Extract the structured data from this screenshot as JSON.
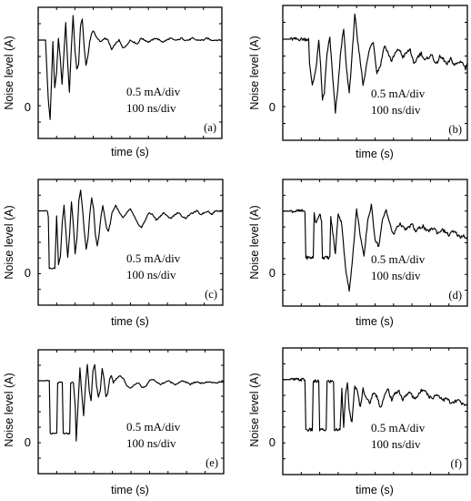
{
  "chart_data": [
    {
      "type": "line",
      "panel_label": "(a)",
      "ylabel": "Noise level (A)",
      "xlabel": "time (s)",
      "ytick_label": "0",
      "annotation_lines": [
        "0.5 mA/div",
        "100 ns/div"
      ],
      "units": {
        "y": "mA",
        "x": "ns"
      },
      "xlim": [
        0,
        1000
      ],
      "ylim": [
        -1.6,
        1.8
      ],
      "baseline": 0.95,
      "pulses": [
        {
          "t": 52,
          "depth": 0.0,
          "width": 6
        },
        {
          "t": 70,
          "depth": 0.0,
          "width": 8
        },
        {
          "t": 100,
          "depth": 0.0,
          "width": 10
        }
      ],
      "x": [
        0,
        40,
        45,
        55,
        65,
        72,
        80,
        90,
        100,
        110,
        120,
        130,
        140,
        150,
        160,
        170,
        180,
        190,
        200,
        210,
        220,
        230,
        240,
        250,
        260,
        270,
        280,
        290,
        300,
        320,
        340,
        360,
        380,
        400,
        420,
        440,
        460,
        480,
        500,
        520,
        540,
        560,
        580,
        600,
        620,
        640,
        660,
        680,
        700,
        720,
        740,
        760,
        780,
        800,
        820,
        840,
        860,
        880,
        900,
        920,
        940,
        960,
        980,
        1000
      ],
      "y": [
        0.95,
        0.95,
        0.4,
        -0.6,
        -1.1,
        -0.2,
        0.9,
        -0.3,
        0.1,
        1.0,
        0.5,
        -0.2,
        0.6,
        1.4,
        0.4,
        -0.4,
        0.7,
        1.6,
        0.7,
        0.2,
        0.3,
        1.3,
        1.5,
        0.8,
        0.3,
        0.5,
        0.9,
        1.1,
        1.2,
        1.0,
        0.9,
        1.0,
        0.95,
        0.7,
        0.85,
        0.95,
        0.75,
        0.8,
        0.95,
        0.9,
        0.85,
        1.0,
        0.95,
        0.9,
        0.95,
        1.0,
        0.95,
        0.9,
        0.95,
        1.0,
        0.95,
        0.95,
        1.0,
        0.95,
        0.95,
        1.0,
        0.95,
        0.95,
        0.95,
        1.0,
        0.95,
        0.95,
        0.95,
        0.95
      ]
    },
    {
      "type": "line",
      "panel_label": "(b)",
      "ylabel": "Noise level (A)",
      "xlabel": "time (s)",
      "ytick_label": "0",
      "annotation_lines": [
        "0.5 mA/div",
        "100 ns/div"
      ],
      "units": {
        "y": "mA",
        "x": "ns"
      },
      "xlim": [
        0,
        1000
      ],
      "ylim": [
        -1.6,
        1.8
      ],
      "baseline": 0.95,
      "x": [
        0,
        140,
        145,
        160,
        180,
        195,
        205,
        215,
        225,
        240,
        255,
        270,
        285,
        300,
        315,
        330,
        345,
        360,
        375,
        390,
        405,
        420,
        435,
        450,
        470,
        490,
        510,
        530,
        550,
        570,
        590,
        610,
        630,
        650,
        670,
        690,
        710,
        730,
        750,
        770,
        790,
        810,
        830,
        850,
        870,
        890,
        910,
        930,
        950,
        970,
        990,
        1000
      ],
      "y": [
        0.95,
        0.95,
        0.3,
        -0.2,
        0.2,
        0.9,
        0.3,
        -0.6,
        -0.4,
        0.6,
        1.0,
        0.0,
        -0.9,
        -0.2,
        0.7,
        1.2,
        0.2,
        -0.4,
        0.5,
        1.6,
        0.9,
        0.4,
        -0.2,
        0.2,
        0.7,
        0.9,
        0.1,
        0.3,
        0.8,
        0.6,
        0.4,
        0.6,
        0.7,
        0.5,
        0.6,
        0.7,
        0.3,
        0.5,
        0.6,
        0.4,
        0.5,
        0.55,
        0.3,
        0.5,
        0.45,
        0.3,
        0.45,
        0.3,
        0.35,
        0.4,
        0.2,
        0.35
      ],
      "noisy": true
    },
    {
      "type": "line",
      "panel_label": "(c)",
      "ylabel": "Noise level (A)",
      "xlabel": "time (s)",
      "ytick_label": "0",
      "annotation_lines": [
        "0.5 mA/div",
        "100 ns/div"
      ],
      "units": {
        "y": "mA",
        "x": "ns"
      },
      "xlim": [
        0,
        1000
      ],
      "ylim": [
        -1.6,
        1.8
      ],
      "baseline": 0.95,
      "x": [
        0,
        50,
        55,
        60,
        90,
        100,
        110,
        120,
        130,
        140,
        150,
        160,
        170,
        180,
        190,
        200,
        210,
        220,
        230,
        240,
        250,
        260,
        270,
        280,
        290,
        300,
        310,
        320,
        330,
        340,
        350,
        360,
        370,
        380,
        390,
        400,
        420,
        440,
        460,
        480,
        500,
        520,
        540,
        560,
        580,
        600,
        620,
        640,
        660,
        680,
        700,
        720,
        740,
        760,
        780,
        800,
        820,
        840,
        860,
        880,
        900,
        920,
        940,
        960,
        980,
        1000
      ],
      "y": [
        0.95,
        0.95,
        0.8,
        -0.6,
        -0.6,
        0.8,
        -0.5,
        -0.3,
        0.6,
        1.1,
        0.4,
        -0.3,
        0.3,
        1.2,
        0.6,
        -0.2,
        0.2,
        1.2,
        1.5,
        1.0,
        0.4,
        -0.1,
        0.2,
        0.9,
        1.3,
        1.0,
        0.3,
        0.0,
        0.3,
        0.8,
        1.1,
        0.8,
        0.5,
        0.4,
        0.6,
        0.9,
        1.1,
        0.9,
        0.75,
        0.9,
        1.0,
        0.8,
        0.6,
        0.5,
        0.7,
        0.9,
        0.85,
        0.7,
        0.8,
        0.9,
        0.8,
        0.75,
        0.85,
        0.9,
        0.8,
        0.75,
        0.85,
        0.9,
        0.95,
        0.85,
        0.9,
        0.95,
        0.85,
        0.95,
        0.95,
        0.95
      ],
      "step_pulses": [
        {
          "start": 58,
          "end": 88,
          "level": -0.6
        }
      ]
    },
    {
      "type": "line",
      "panel_label": "(d)",
      "ylabel": "Noise level (A)",
      "xlabel": "time (s)",
      "ytick_label": "0",
      "annotation_lines": [
        "0.5 mA/div",
        "100 ns/div"
      ],
      "units": {
        "y": "mA",
        "x": "ns"
      },
      "xlim": [
        0,
        1000
      ],
      "ylim": [
        -1.6,
        1.8
      ],
      "baseline": 0.95,
      "x": [
        0,
        120,
        125,
        165,
        170,
        180,
        200,
        210,
        215,
        255,
        260,
        270,
        285,
        300,
        320,
        340,
        360,
        380,
        400,
        420,
        440,
        460,
        480,
        500,
        520,
        540,
        560,
        580,
        600,
        620,
        640,
        660,
        680,
        700,
        720,
        740,
        760,
        780,
        800,
        820,
        840,
        860,
        880,
        900,
        920,
        940,
        960,
        980,
        1000
      ],
      "y": [
        0.95,
        0.95,
        -0.3,
        -0.3,
        0.9,
        0.6,
        0.9,
        0.7,
        -0.3,
        -0.3,
        0.8,
        0.4,
        -0.2,
        0.9,
        0.6,
        -0.6,
        -1.2,
        -0.2,
        1.0,
        0.3,
        -0.3,
        0.7,
        1.1,
        0.2,
        0.0,
        0.7,
        1.0,
        0.6,
        0.3,
        0.55,
        0.6,
        0.45,
        0.5,
        0.6,
        0.4,
        0.5,
        0.55,
        0.4,
        0.45,
        0.5,
        0.35,
        0.45,
        0.4,
        0.3,
        0.4,
        0.35,
        0.25,
        0.3,
        0.2
      ],
      "noisy": true
    },
    {
      "type": "line",
      "panel_label": "(e)",
      "ylabel": "Noise level (A)",
      "xlabel": "time (s)",
      "ytick_label": "0",
      "annotation_lines": [
        "0.5 mA/div",
        "100 ns/div"
      ],
      "units": {
        "y": "mA",
        "x": "ns"
      },
      "xlim": [
        0,
        1000
      ],
      "ylim": [
        -1.6,
        1.8
      ],
      "baseline": 0.95,
      "x": [
        0,
        60,
        65,
        100,
        105,
        130,
        135,
        170,
        175,
        190,
        200,
        205,
        215,
        225,
        235,
        245,
        255,
        265,
        275,
        285,
        295,
        305,
        315,
        325,
        335,
        345,
        355,
        365,
        375,
        385,
        395,
        405,
        420,
        440,
        460,
        480,
        500,
        520,
        540,
        560,
        580,
        600,
        620,
        640,
        660,
        680,
        700,
        720,
        740,
        760,
        780,
        800,
        820,
        840,
        860,
        880,
        900,
        920,
        940,
        960,
        980,
        1000
      ],
      "y": [
        0.95,
        0.95,
        -0.5,
        -0.5,
        0.9,
        0.9,
        -0.5,
        -0.5,
        0.9,
        0.9,
        0.2,
        -0.7,
        0.3,
        1.3,
        0.6,
        0.0,
        0.8,
        1.4,
        0.7,
        0.4,
        1.2,
        1.4,
        0.8,
        0.5,
        0.7,
        1.3,
        1.0,
        0.5,
        0.6,
        1.0,
        1.1,
        0.9,
        1.0,
        1.1,
        1.0,
        0.8,
        0.75,
        0.85,
        0.9,
        0.75,
        0.8,
        0.95,
        1.0,
        0.9,
        0.85,
        0.9,
        0.95,
        0.9,
        0.85,
        0.9,
        0.95,
        0.9,
        0.85,
        0.9,
        0.92,
        0.88,
        0.9,
        0.92,
        0.9,
        0.88,
        0.92,
        0.9
      ]
    },
    {
      "type": "line",
      "panel_label": "(f)",
      "ylabel": "Noise level (A)",
      "xlabel": "time (s)",
      "ytick_label": "0",
      "annotation_lines": [
        "0.5 mA/div",
        "100 ns/div"
      ],
      "units": {
        "y": "mA",
        "x": "ns"
      },
      "xlim": [
        0,
        1000
      ],
      "ylim": [
        -1.6,
        1.8
      ],
      "baseline": 0.95,
      "x": [
        0,
        120,
        125,
        160,
        165,
        195,
        200,
        235,
        240,
        275,
        280,
        310,
        320,
        330,
        340,
        350,
        360,
        375,
        390,
        405,
        420,
        435,
        450,
        470,
        490,
        510,
        530,
        550,
        570,
        590,
        610,
        630,
        650,
        670,
        690,
        710,
        730,
        750,
        770,
        790,
        810,
        830,
        850,
        870,
        890,
        910,
        930,
        950,
        970,
        990,
        1000
      ],
      "y": [
        0.95,
        0.95,
        -0.4,
        -0.4,
        0.9,
        0.9,
        -0.4,
        -0.4,
        0.9,
        0.9,
        -0.4,
        -0.4,
        0.7,
        -0.3,
        0.5,
        0.9,
        0.1,
        -0.2,
        0.8,
        0.6,
        0.2,
        0.7,
        0.5,
        0.3,
        0.6,
        0.5,
        0.2,
        0.5,
        0.7,
        0.4,
        0.6,
        0.65,
        0.4,
        0.55,
        0.6,
        0.45,
        0.5,
        0.65,
        0.7,
        0.5,
        0.45,
        0.55,
        0.5,
        0.4,
        0.45,
        0.3,
        0.35,
        0.4,
        0.3,
        0.25,
        0.3
      ],
      "noisy": true
    }
  ]
}
